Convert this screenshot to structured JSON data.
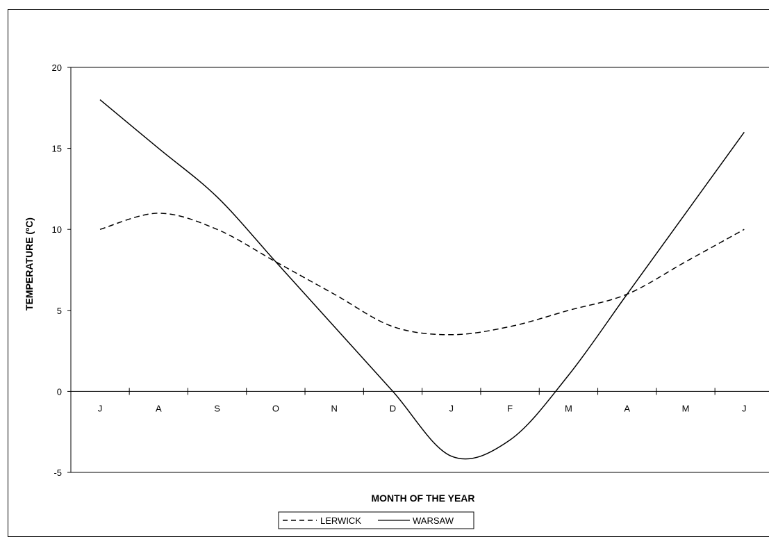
{
  "chart_data": {
    "type": "line",
    "xlabel": "MONTH OF THE YEAR",
    "ylabel": "TEMPERATURE (ºC)",
    "ylim": [
      -5,
      20
    ],
    "yticks": [
      "-5",
      "0",
      "5",
      "10",
      "15",
      "20"
    ],
    "categories": [
      "J",
      "A",
      "S",
      "O",
      "N",
      "D",
      "J",
      "F",
      "M",
      "A",
      "M",
      "J"
    ],
    "grid": false,
    "legend_position": "bottom",
    "series": [
      {
        "name": "LERWICK",
        "style": "dashed",
        "color": "#000000",
        "values": [
          10,
          11,
          10,
          8,
          6,
          4,
          3.5,
          4,
          5,
          6,
          8,
          10
        ]
      },
      {
        "name": "WARSAW",
        "style": "solid",
        "color": "#000000",
        "values": [
          18,
          15,
          12,
          8,
          4,
          0,
          -4,
          -3,
          1,
          6,
          11,
          16
        ]
      }
    ]
  }
}
